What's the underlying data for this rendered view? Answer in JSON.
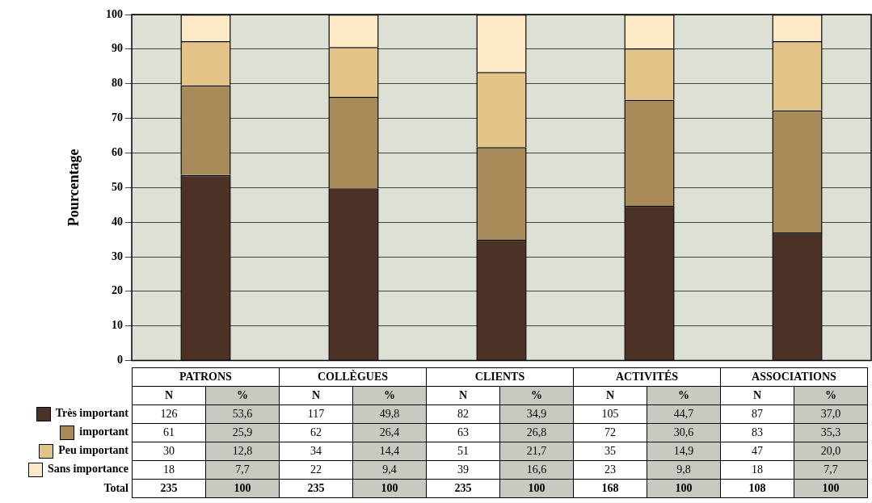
{
  "chart_data": {
    "type": "bar",
    "stacked": true,
    "ylabel": "Pourcentage",
    "categories": [
      "PATRONS",
      "COLLÈGUES",
      "CLIENTS",
      "ACTIVITÉS",
      "ASSOCIATIONS"
    ],
    "series": [
      {
        "name": "Très important",
        "color": "#4b3126",
        "values": [
          53.6,
          49.8,
          34.9,
          44.7,
          37.0
        ],
        "value_labels": [
          "53,6",
          "49,8",
          "34,9",
          "44,7",
          "37,0"
        ]
      },
      {
        "name": "important",
        "color": "#a98b59",
        "values": [
          25.9,
          26.4,
          26.8,
          30.6,
          35.3
        ],
        "value_labels": [
          "25,9",
          "26,4",
          "26,8",
          "30,6",
          "35,3"
        ]
      },
      {
        "name": "Peu important",
        "color": "#e3c486",
        "values": [
          12.8,
          14.4,
          21.7,
          14.9,
          20.0
        ],
        "value_labels": [
          "12,8",
          "14,4",
          "21,7",
          "14,9",
          "20,0"
        ]
      },
      {
        "name": "Sans importance",
        "color": "#fde9c5",
        "values": [
          7.7,
          9.4,
          16.6,
          9.8,
          7.7
        ],
        "value_labels": [
          "7,7",
          "9,4",
          "16,6",
          "9,8",
          "7,7"
        ]
      }
    ],
    "ylim": [
      0,
      100
    ],
    "yticks": [
      0,
      10,
      20,
      30,
      40,
      50,
      60,
      70,
      80,
      90,
      100
    ],
    "grid": "y",
    "tick_labels": "y",
    "legend": "bottom left",
    "annotations": [
      "N",
      "%",
      "Total",
      "126",
      "117",
      "82",
      "105",
      "87",
      "61",
      "62",
      "63",
      "72",
      "83",
      "30",
      "34",
      "51",
      "35",
      "47",
      "18",
      "22",
      "39",
      "23",
      "18",
      "235",
      "235",
      "235",
      "168",
      "108",
      "100",
      "100",
      "100",
      "100",
      "100"
    ]
  }
}
